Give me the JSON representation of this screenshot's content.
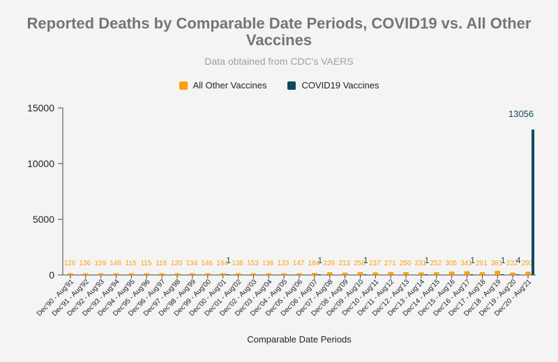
{
  "title": "Reported Deaths by Comparable Date Periods, COVID19 vs. All Other Vaccines",
  "subtitle": "Data obtained from CDC's VAERS",
  "legend": [
    {
      "label": "All Other Vaccines",
      "color": "#ff9f0a"
    },
    {
      "label": "COVID19 Vaccines",
      "color": "#0d4a5f"
    }
  ],
  "chart_data": {
    "type": "bar",
    "xlabel": "Comparable Date Periods",
    "ylabel": "",
    "ylim": [
      0,
      15000
    ],
    "yticks": [
      0,
      5000,
      10000,
      15000
    ],
    "grid": false,
    "legend_position": "top",
    "categories": [
      "Dec'90 - Aug'91",
      "Dec'91 - Aug'92",
      "Dec'92 - Aug'93",
      "Dec'93 - Aug'94",
      "Dec'94 - Aug'95",
      "Dec'95 - Aug'96",
      "Dec'96 - Aug'97",
      "Dec'97 - Aug'98",
      "Dec'98 - Aug'99",
      "Dec'99 - Aug'00",
      "Dec'00 - Aug'01",
      "Dec'01 - Aug'02",
      "Dec'02 - Aug'03",
      "Dec'03 - Aug'04",
      "Dec'04 - Aug'05",
      "Dec'05 - Aug'06",
      "Dec'06 - Aug'07",
      "Dec'07 - Aug'08",
      "Dec'08 - Aug'09",
      "Dec'09 - Aug'10",
      "Dec'10 - Aug'11",
      "Dec'11 - Aug'12",
      "Dec'12 - Aug'13",
      "Dec'13 - Aug'14",
      "Dec'14 - Aug'15",
      "Dec'15 - Aug'16",
      "Dec'16 - Aug'17",
      "Dec'17 - Aug'18",
      "Dec'18 - Aug'19",
      "Dec'19 - Aug'20",
      "Dec'20 - Aug'21"
    ],
    "series": [
      {
        "name": "All Other Vaccines",
        "color": "#ff9f0a",
        "values": [
          126,
          136,
          159,
          148,
          115,
          115,
          118,
          120,
          134,
          146,
          164,
          138,
          153,
          136,
          133,
          147,
          184,
          239,
          213,
          258,
          237,
          271,
          250,
          231,
          252,
          305,
          341,
          261,
          381,
          222,
          293
        ],
        "labels": [
          "126",
          "136",
          "159",
          "148",
          "115",
          "115",
          "118",
          "120",
          "134",
          "146",
          "164",
          "138",
          "153",
          "136",
          "133",
          "147",
          "184",
          "239",
          "213",
          "258",
          "237",
          "271",
          "250",
          "231",
          "252",
          "305",
          "341",
          "261",
          "381",
          "222",
          "293"
        ]
      },
      {
        "name": "COVID19 Vaccines",
        "color": "#0d4a5f",
        "values": [
          0,
          0,
          0,
          0,
          0,
          0,
          0,
          0,
          0,
          0,
          1,
          0,
          0,
          0,
          0,
          0,
          1,
          0,
          0,
          1,
          0,
          0,
          0,
          1,
          0,
          0,
          1,
          0,
          1,
          4,
          13056
        ],
        "labels": [
          null,
          null,
          null,
          null,
          null,
          null,
          null,
          null,
          null,
          null,
          "1",
          null,
          null,
          null,
          null,
          null,
          "1",
          null,
          null,
          "1",
          null,
          null,
          null,
          "1",
          null,
          null,
          "1",
          null,
          "1",
          "4",
          "13056"
        ]
      }
    ]
  }
}
